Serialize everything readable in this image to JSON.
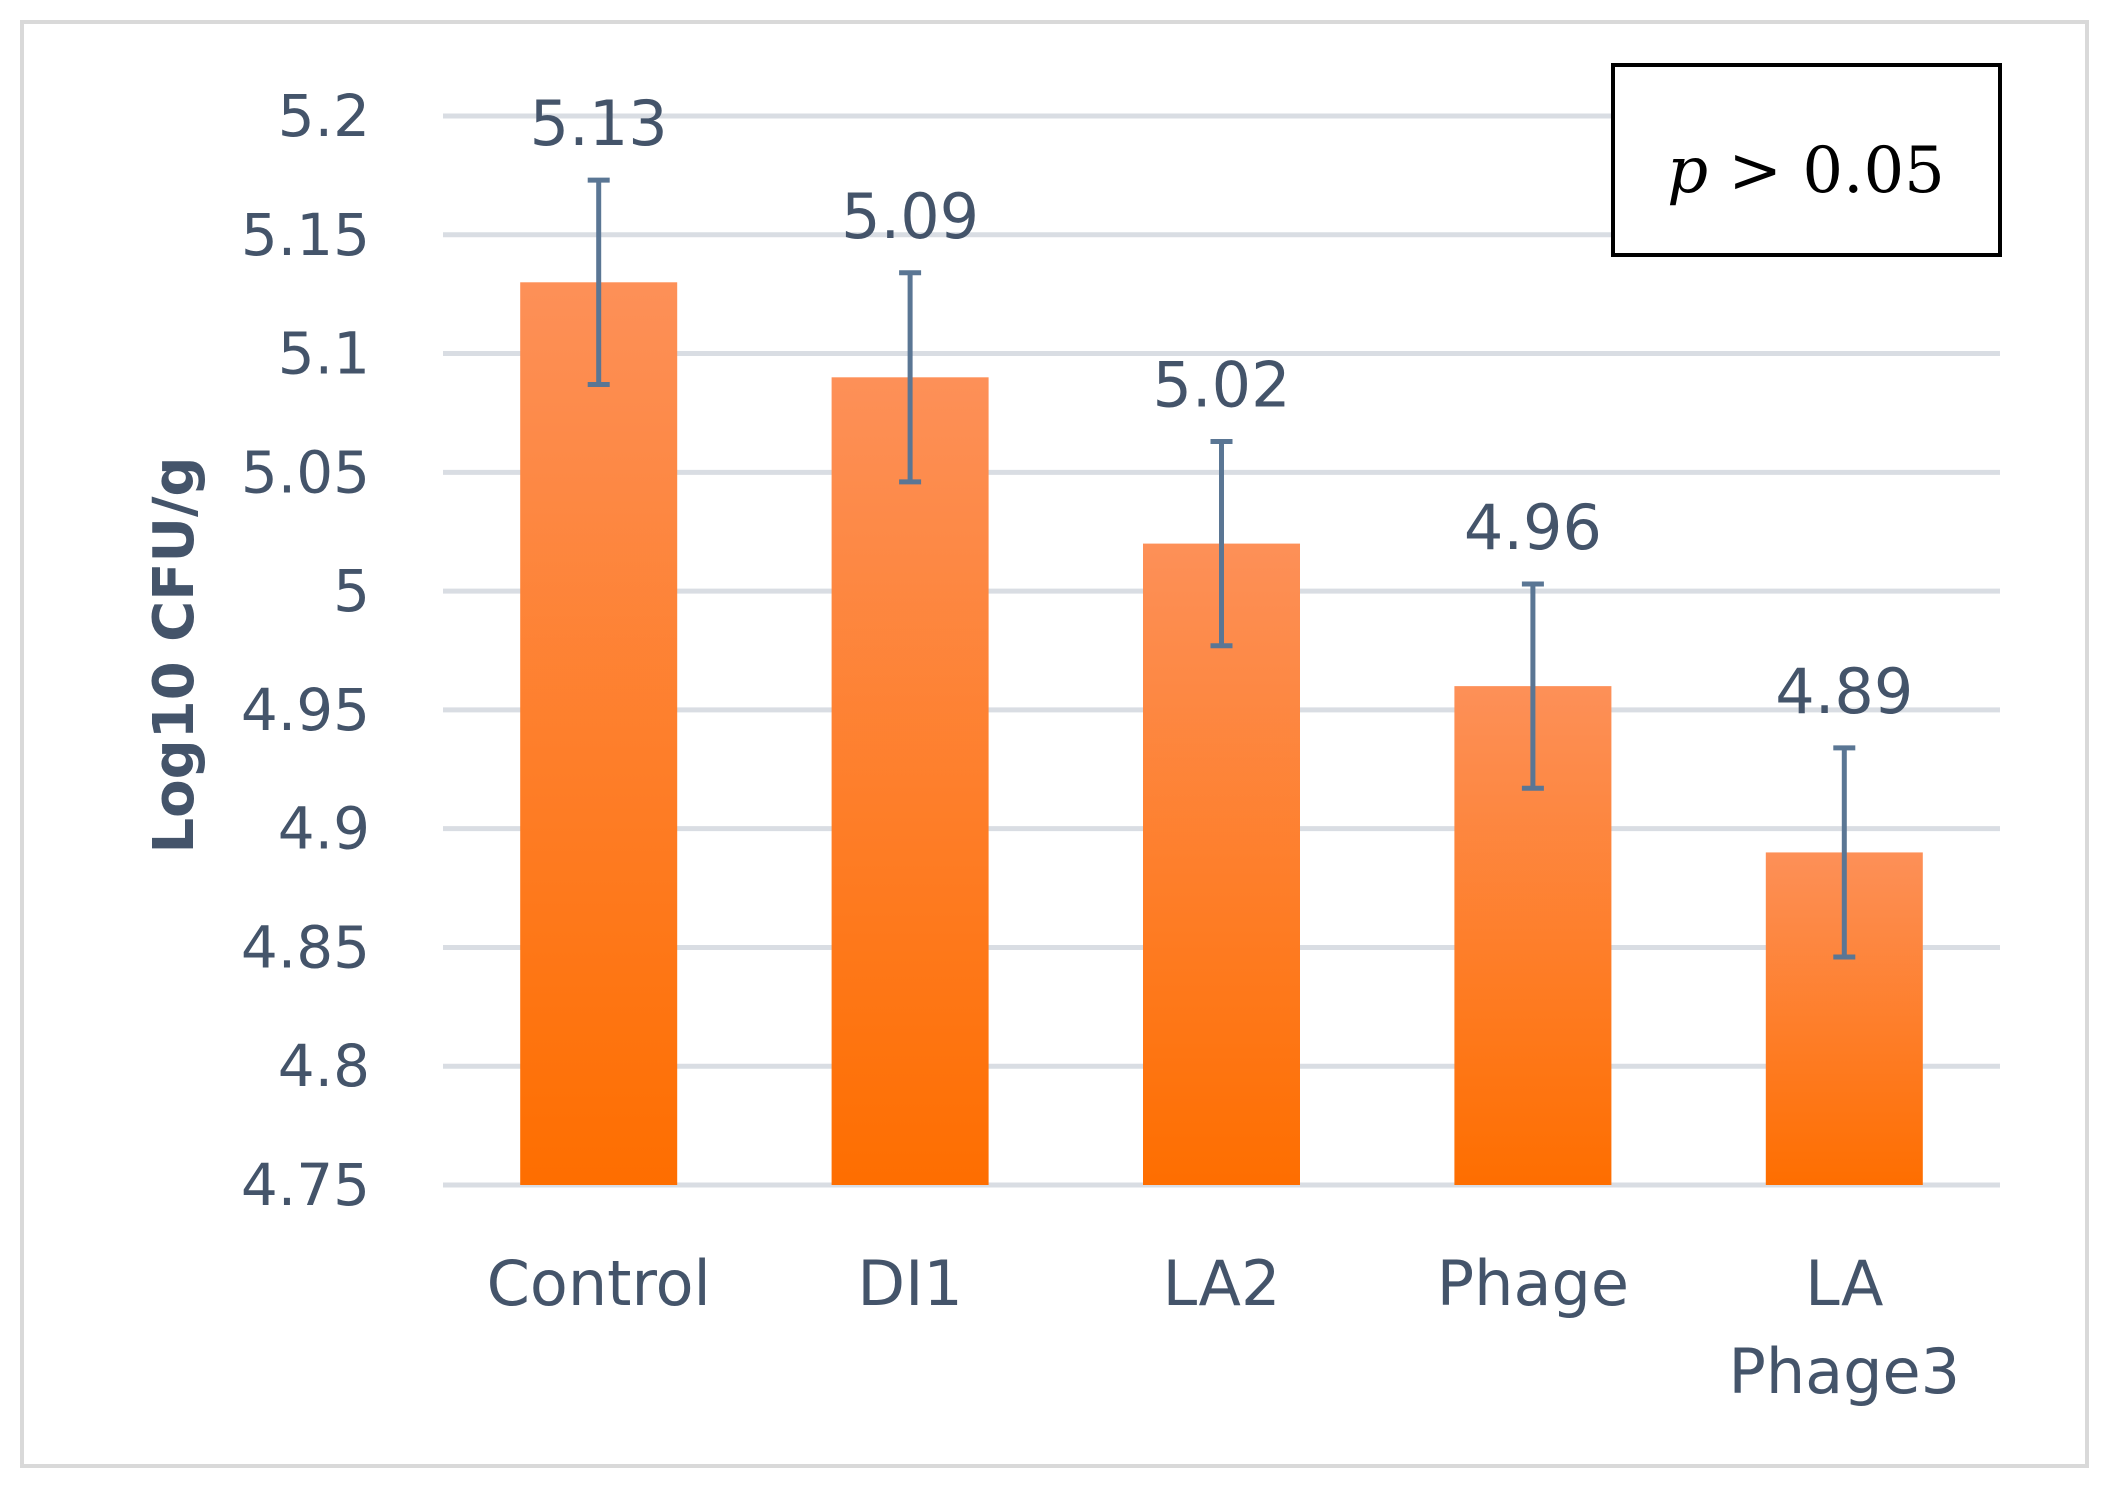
{
  "chart_data": {
    "type": "bar",
    "title": "",
    "xlabel": "",
    "ylabel": "Log10 CFU/g",
    "categories": [
      [
        "Control"
      ],
      [
        "DI1"
      ],
      [
        "LA2"
      ],
      [
        "Phage"
      ],
      [
        "LA",
        "Phage3"
      ]
    ],
    "values": [
      5.13,
      5.09,
      5.02,
      4.96,
      4.89
    ],
    "value_labels": [
      "5.13",
      "5.09",
      "5.02",
      "4.96",
      "4.89"
    ],
    "error": [
      0.043,
      0.044,
      0.043,
      0.043,
      0.044
    ],
    "ylim": [
      4.75,
      5.2
    ],
    "yticks": [
      4.75,
      4.8,
      4.85,
      4.9,
      4.95,
      5,
      5.05,
      5.1,
      5.15,
      5.2
    ],
    "ytick_labels": [
      "4.75",
      "4.8",
      "4.85",
      "4.9",
      "4.95",
      "5",
      "5.05",
      "5.1",
      "5.15",
      "5.2"
    ],
    "grid": true,
    "legend": "none",
    "annotation": {
      "symbol": "p",
      "text": " > 0.05",
      "placement": "top-right"
    },
    "colors": {
      "bar_top": "#fd9058",
      "bar_bottom": "#fe6e00",
      "error_bar": "#5a7694",
      "grid": "#d9dde3",
      "text": "#44546a"
    }
  }
}
